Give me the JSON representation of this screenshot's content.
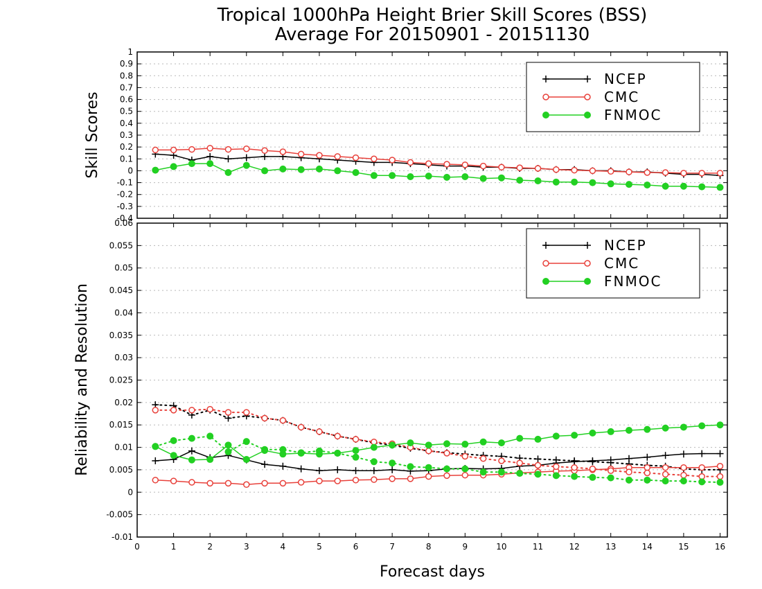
{
  "title_line1": "Tropical 1000hPa Height Brier Skill Scores (BSS)",
  "title_line2": "Average For 20150901 - 20151130",
  "xlabel": "Forecast days",
  "colors": {
    "NCEP": "#000000",
    "CMC": "#e8403a",
    "FNMOC": "#22d022",
    "grid": "#b8b8b8"
  },
  "chart_data": [
    {
      "type": "line",
      "ylabel": "Skill Scores",
      "xlim": [
        0,
        16.2
      ],
      "ylim": [
        -0.4,
        1
      ],
      "yticks": [
        -0.4,
        -0.3,
        -0.2,
        -0.1,
        0,
        0.1,
        0.2,
        0.3,
        0.4,
        0.5,
        0.6,
        0.7,
        0.8,
        0.9,
        1
      ],
      "ytick_labels": [
        "-0.4",
        "-0.3",
        "-0.2",
        "-0.1",
        "0",
        "0.1",
        "0.2",
        "0.3",
        "0.4",
        "0.5",
        "0.6",
        "0.7",
        "0.8",
        "0.9",
        "1"
      ],
      "grid": true,
      "legend": "top-right",
      "legend_entries": [
        "NCEP",
        "CMC",
        "FNMOC"
      ],
      "x": [
        0.5,
        1,
        1.5,
        2,
        2.5,
        3,
        3.5,
        4,
        4.5,
        5,
        5.5,
        6,
        6.5,
        7,
        7.5,
        8,
        8.5,
        9,
        9.5,
        10,
        10.5,
        11,
        11.5,
        12,
        12.5,
        13,
        13.5,
        14,
        14.5,
        15,
        15.5,
        16
      ],
      "series": [
        {
          "name": "NCEP",
          "marker": "plus",
          "style": "solid",
          "values": [
            0.14,
            0.13,
            0.09,
            0.12,
            0.1,
            0.11,
            0.12,
            0.12,
            0.11,
            0.1,
            0.09,
            0.08,
            0.07,
            0.07,
            0.06,
            0.05,
            0.04,
            0.04,
            0.03,
            0.03,
            0.02,
            0.02,
            0.01,
            0.01,
            0.0,
            0.0,
            -0.01,
            -0.01,
            -0.02,
            -0.03,
            -0.03,
            -0.04
          ]
        },
        {
          "name": "CMC",
          "marker": "circle-open",
          "style": "solid",
          "values": [
            0.175,
            0.175,
            0.18,
            0.19,
            0.18,
            0.185,
            0.17,
            0.16,
            0.14,
            0.13,
            0.12,
            0.11,
            0.1,
            0.09,
            0.07,
            0.06,
            0.055,
            0.05,
            0.04,
            0.03,
            0.025,
            0.02,
            0.01,
            0.005,
            0.0,
            -0.005,
            -0.01,
            -0.015,
            -0.015,
            -0.02,
            -0.02,
            -0.02
          ]
        },
        {
          "name": "FNMOC",
          "marker": "circle-filled",
          "style": "solid",
          "values": [
            0.005,
            0.035,
            0.06,
            0.06,
            -0.015,
            0.045,
            0.0,
            0.015,
            0.01,
            0.015,
            0.0,
            -0.015,
            -0.04,
            -0.04,
            -0.05,
            -0.045,
            -0.055,
            -0.05,
            -0.065,
            -0.06,
            -0.08,
            -0.085,
            -0.095,
            -0.095,
            -0.1,
            -0.11,
            -0.115,
            -0.12,
            -0.13,
            -0.13,
            -0.135,
            -0.14
          ]
        }
      ]
    },
    {
      "type": "line",
      "ylabel": "Reliability and Resolution",
      "xlim": [
        0,
        16.2
      ],
      "ylim": [
        -0.01,
        0.06
      ],
      "yticks": [
        -0.01,
        -0.005,
        0,
        0.005,
        0.01,
        0.015,
        0.02,
        0.025,
        0.03,
        0.035,
        0.04,
        0.045,
        0.05,
        0.055,
        0.06
      ],
      "ytick_labels": [
        "-0.01",
        "-0.005",
        "0",
        "0.005",
        "0.01",
        "0.015",
        "0.02",
        "0.025",
        "0.03",
        "0.035",
        "0.04",
        "0.045",
        "0.05",
        "0.055",
        "0.06"
      ],
      "xticks": [
        0,
        1,
        2,
        3,
        4,
        5,
        6,
        7,
        8,
        9,
        10,
        11,
        12,
        13,
        14,
        15,
        16
      ],
      "xtick_labels": [
        "0",
        "1",
        "2",
        "3",
        "4",
        "5",
        "6",
        "7",
        "8",
        "9",
        "10",
        "11",
        "12",
        "13",
        "14",
        "15",
        "16"
      ],
      "grid": true,
      "legend": "top-right",
      "legend_entries": [
        "NCEP",
        "CMC",
        "FNMOC"
      ],
      "x": [
        0.5,
        1,
        1.5,
        2,
        2.5,
        3,
        3.5,
        4,
        4.5,
        5,
        5.5,
        6,
        6.5,
        7,
        7.5,
        8,
        8.5,
        9,
        9.5,
        10,
        10.5,
        11,
        11.5,
        12,
        12.5,
        13,
        13.5,
        14,
        14.5,
        15,
        15.5,
        16
      ],
      "series": [
        {
          "name": "NCEP",
          "marker": "plus",
          "style": "solid",
          "values": [
            0.007,
            0.0073,
            0.0092,
            0.0077,
            0.0082,
            0.0072,
            0.0062,
            0.0058,
            0.0052,
            0.0048,
            0.005,
            0.0048,
            0.0048,
            0.005,
            0.0047,
            0.0048,
            0.0052,
            0.0053,
            0.0052,
            0.0053,
            0.0058,
            0.006,
            0.0065,
            0.0068,
            0.007,
            0.0072,
            0.0075,
            0.0078,
            0.0082,
            0.0085,
            0.0086,
            0.0086
          ]
        },
        {
          "name": "NCEP",
          "marker": "plus",
          "style": "dotted",
          "values": [
            0.0195,
            0.0193,
            0.0172,
            0.0183,
            0.0165,
            0.017,
            0.0165,
            0.016,
            0.0145,
            0.0135,
            0.0125,
            0.0118,
            0.011,
            0.0105,
            0.0098,
            0.0092,
            0.0088,
            0.0085,
            0.0082,
            0.008,
            0.0076,
            0.0074,
            0.0072,
            0.007,
            0.0068,
            0.0066,
            0.0063,
            0.006,
            0.0058,
            0.0052,
            0.005,
            0.005
          ]
        },
        {
          "name": "CMC",
          "marker": "circle-open",
          "style": "solid",
          "values": [
            0.0027,
            0.0025,
            0.0022,
            0.002,
            0.002,
            0.0017,
            0.002,
            0.002,
            0.0022,
            0.0025,
            0.0025,
            0.0027,
            0.0028,
            0.003,
            0.003,
            0.0035,
            0.0037,
            0.0038,
            0.0038,
            0.004,
            0.0043,
            0.0045,
            0.0047,
            0.0048,
            0.005,
            0.0052,
            0.0055,
            0.0055,
            0.0055,
            0.0055,
            0.0055,
            0.0058
          ]
        },
        {
          "name": "CMC",
          "marker": "circle-open",
          "style": "dotted",
          "values": [
            0.0183,
            0.0183,
            0.0183,
            0.0185,
            0.0178,
            0.0178,
            0.0165,
            0.016,
            0.0145,
            0.0135,
            0.0125,
            0.0118,
            0.0112,
            0.0108,
            0.01,
            0.0092,
            0.0087,
            0.008,
            0.0075,
            0.007,
            0.0065,
            0.006,
            0.0057,
            0.0055,
            0.0052,
            0.0048,
            0.0045,
            0.0043,
            0.004,
            0.0038,
            0.0035,
            0.0035
          ]
        },
        {
          "name": "FNMOC",
          "marker": "circle-filled",
          "style": "solid",
          "values": [
            0.0102,
            0.0082,
            0.0072,
            0.0073,
            0.0105,
            0.0073,
            0.0093,
            0.0085,
            0.0087,
            0.0085,
            0.0087,
            0.0093,
            0.01,
            0.0105,
            0.011,
            0.0105,
            0.0108,
            0.0107,
            0.0112,
            0.011,
            0.012,
            0.0118,
            0.0125,
            0.0127,
            0.0132,
            0.0135,
            0.0138,
            0.014,
            0.0143,
            0.0145,
            0.0148,
            0.015
          ]
        },
        {
          "name": "FNMOC",
          "marker": "circle-filled",
          "style": "dotted",
          "values": [
            0.0102,
            0.0115,
            0.012,
            0.0125,
            0.009,
            0.0113,
            0.0095,
            0.0095,
            0.0088,
            0.0092,
            0.0087,
            0.0078,
            0.0068,
            0.0065,
            0.0057,
            0.0055,
            0.0052,
            0.0052,
            0.0045,
            0.0045,
            0.0042,
            0.004,
            0.0037,
            0.0035,
            0.0033,
            0.0032,
            0.0027,
            0.0027,
            0.0025,
            0.0025,
            0.0023,
            0.0022
          ]
        }
      ]
    }
  ]
}
